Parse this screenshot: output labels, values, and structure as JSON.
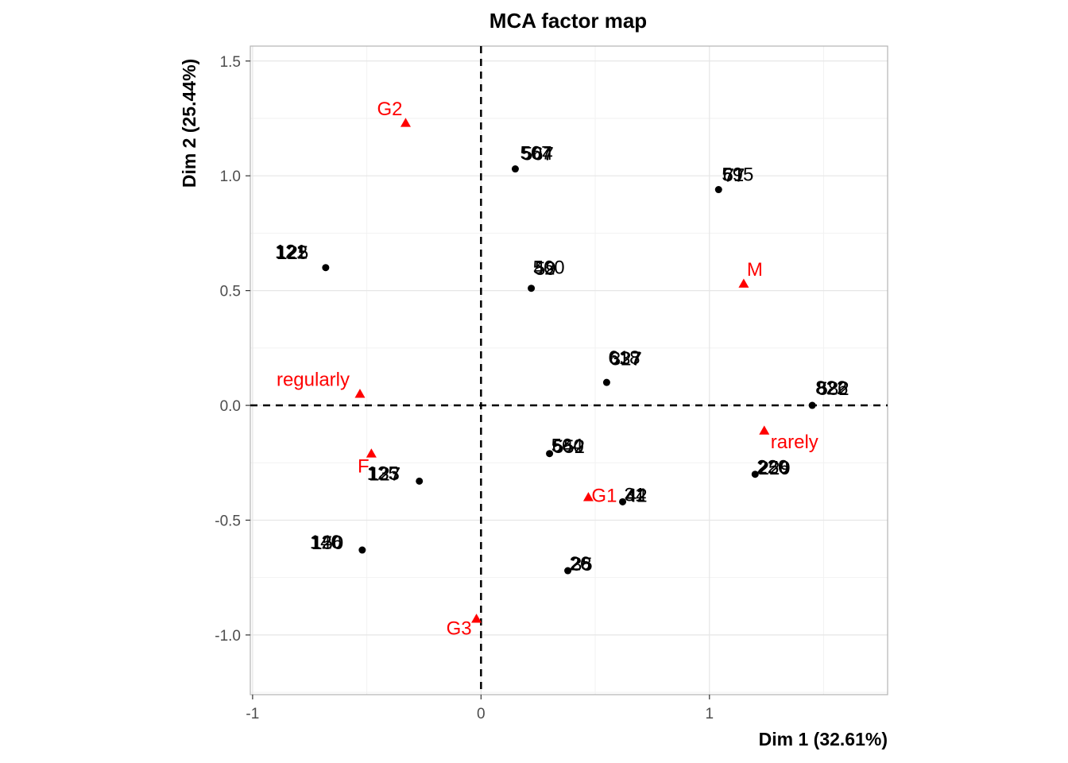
{
  "chart_data": {
    "type": "scatter",
    "title": "MCA factor map",
    "xlabel": "Dim 1 (32.61%)",
    "ylabel": "Dim 2 (25.44%)",
    "xlim": [
      -1.01,
      1.78
    ],
    "ylim": [
      -1.26,
      1.565
    ],
    "x_ticks": [
      -1,
      0,
      1
    ],
    "x_tick_labels": [
      "-1",
      "0",
      "1"
    ],
    "y_ticks": [
      -1.0,
      -0.5,
      0.0,
      0.5,
      1.0,
      1.5
    ],
    "y_tick_labels": [
      "-1.0",
      "-0.5",
      "0.0",
      "0.5",
      "1.0",
      "1.5"
    ],
    "grid": true,
    "reference_lines": {
      "x": 0,
      "y": 0,
      "style": "dashed"
    },
    "series": [
      {
        "name": "individuals",
        "color": "#000000",
        "marker": "circle",
        "points": [
          {
            "x": 0.15,
            "y": 1.03,
            "labels": [
              "567",
              "504",
              "567"
            ]
          },
          {
            "x": 1.04,
            "y": 0.94,
            "labels": [
              "595",
              "61",
              "77"
            ]
          },
          {
            "x": -0.68,
            "y": 0.6,
            "labels": [
              "121",
              "122",
              "125"
            ]
          },
          {
            "x": 0.22,
            "y": 0.51,
            "labels": [
              "560",
              "42",
              "59"
            ]
          },
          {
            "x": 0.55,
            "y": 0.1,
            "labels": [
              "618",
              "637",
              "327"
            ]
          },
          {
            "x": 1.45,
            "y": 0.0,
            "labels": [
              "822",
              "826",
              "582"
            ]
          },
          {
            "x": 0.3,
            "y": -0.21,
            "labels": [
              "564",
              "640",
              "552"
            ]
          },
          {
            "x": 1.2,
            "y": -0.3,
            "labels": [
              "220",
              "256",
              "229"
            ]
          },
          {
            "x": -0.27,
            "y": -0.33,
            "labels": [
              "125",
              "133",
              "127"
            ]
          },
          {
            "x": 0.62,
            "y": -0.42,
            "labels": [
              "31",
              "44",
              "42"
            ]
          },
          {
            "x": -0.52,
            "y": -0.63,
            "labels": [
              "140",
              "126",
              "150"
            ]
          },
          {
            "x": 0.38,
            "y": -0.72,
            "labels": [
              "26",
              "28",
              "35"
            ]
          }
        ]
      },
      {
        "name": "categories",
        "color": "#ff0000",
        "marker": "triangle",
        "points": [
          {
            "x": -0.33,
            "y": 1.23,
            "label": "G2"
          },
          {
            "x": 1.15,
            "y": 0.53,
            "label": "M"
          },
          {
            "x": -0.53,
            "y": 0.05,
            "label": "regularly"
          },
          {
            "x": 1.24,
            "y": -0.11,
            "label": "rarely"
          },
          {
            "x": -0.48,
            "y": -0.21,
            "label": "F"
          },
          {
            "x": 0.47,
            "y": -0.4,
            "label": "G1"
          },
          {
            "x": -0.02,
            "y": -0.93,
            "label": "G3"
          }
        ]
      }
    ]
  }
}
